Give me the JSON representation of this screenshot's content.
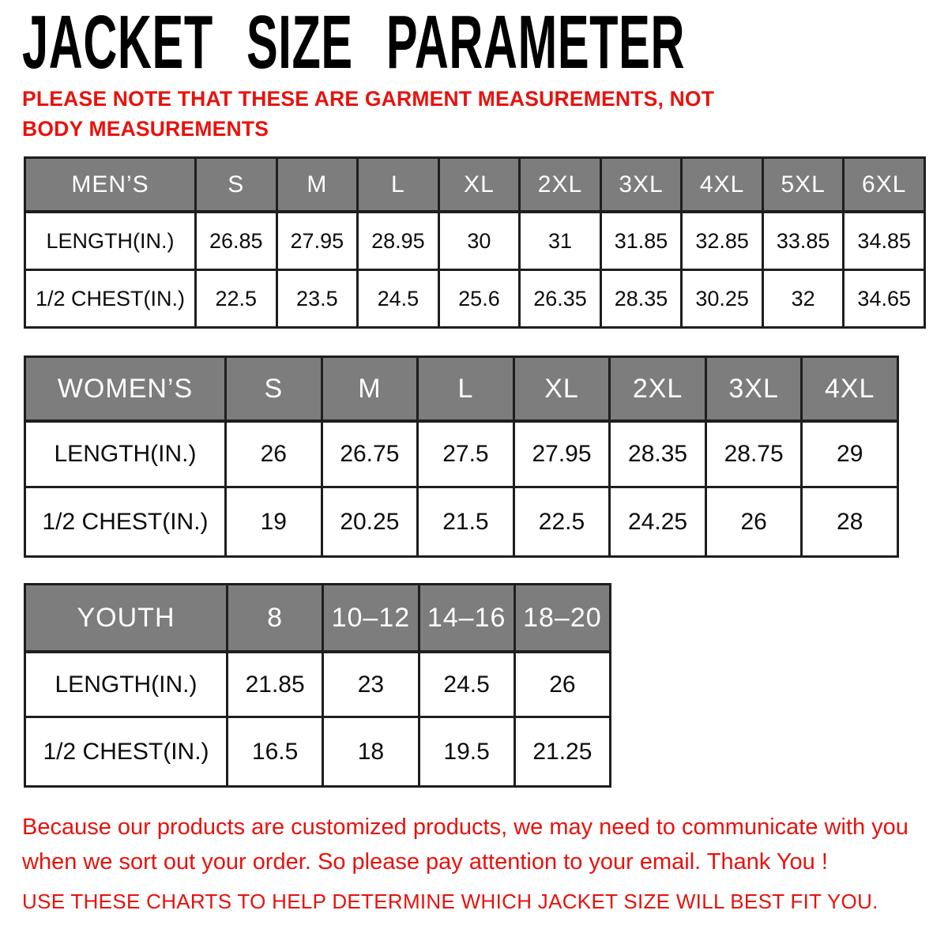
{
  "page": {
    "title": "JACKET SIZE PARAMETER",
    "note": "PLEASE NOTE THAT THESE ARE GARMENT MEASUREMENTS, NOT BODY MEASUREMENTS",
    "footer_note_1": "Because our products are customized products, we may need to communicate with you when we sort out your order. So please pay attention to your email. Thank You !",
    "footer_note_2": "USE THESE CHARTS TO HELP DETERMINE WHICH JACKET SIZE WILL BEST FIT YOU."
  },
  "colors": {
    "accent_red": "#e8120d",
    "header_gray": "#7d7d7d",
    "border_dark": "#1e1e1e"
  },
  "tables": [
    {
      "name": "mens",
      "header": [
        "MEN’S",
        "S",
        "M",
        "L",
        "XL",
        "2XL",
        "3XL",
        "4XL",
        "5XL",
        "6XL"
      ],
      "rows": [
        {
          "label": "LENGTH(IN.)",
          "values": [
            "26.85",
            "27.95",
            "28.95",
            "30",
            "31",
            "31.85",
            "32.85",
            "33.85",
            "34.85"
          ]
        },
        {
          "label": "1/2 CHEST(IN.)",
          "values": [
            "22.5",
            "23.5",
            "24.5",
            "25.6",
            "26.35",
            "28.35",
            "30.25",
            "32",
            "34.65"
          ]
        }
      ]
    },
    {
      "name": "womens",
      "header": [
        "WOMEN’S",
        "S",
        "M",
        "L",
        "XL",
        "2XL",
        "3XL",
        "4XL"
      ],
      "rows": [
        {
          "label": "LENGTH(IN.)",
          "values": [
            "26",
            "26.75",
            "27.5",
            "27.95",
            "28.35",
            "28.75",
            "29"
          ]
        },
        {
          "label": "1/2 CHEST(IN.)",
          "values": [
            "19",
            "20.25",
            "21.5",
            "22.5",
            "24.25",
            "26",
            "28"
          ]
        }
      ]
    },
    {
      "name": "youth",
      "header": [
        "YOUTH",
        "8",
        "10–12",
        "14–16",
        "18–20"
      ],
      "rows": [
        {
          "label": "LENGTH(IN.)",
          "values": [
            "21.85",
            "23",
            "24.5",
            "26"
          ]
        },
        {
          "label": "1/2 CHEST(IN.)",
          "values": [
            "16.5",
            "18",
            "19.5",
            "21.25"
          ]
        }
      ]
    }
  ]
}
